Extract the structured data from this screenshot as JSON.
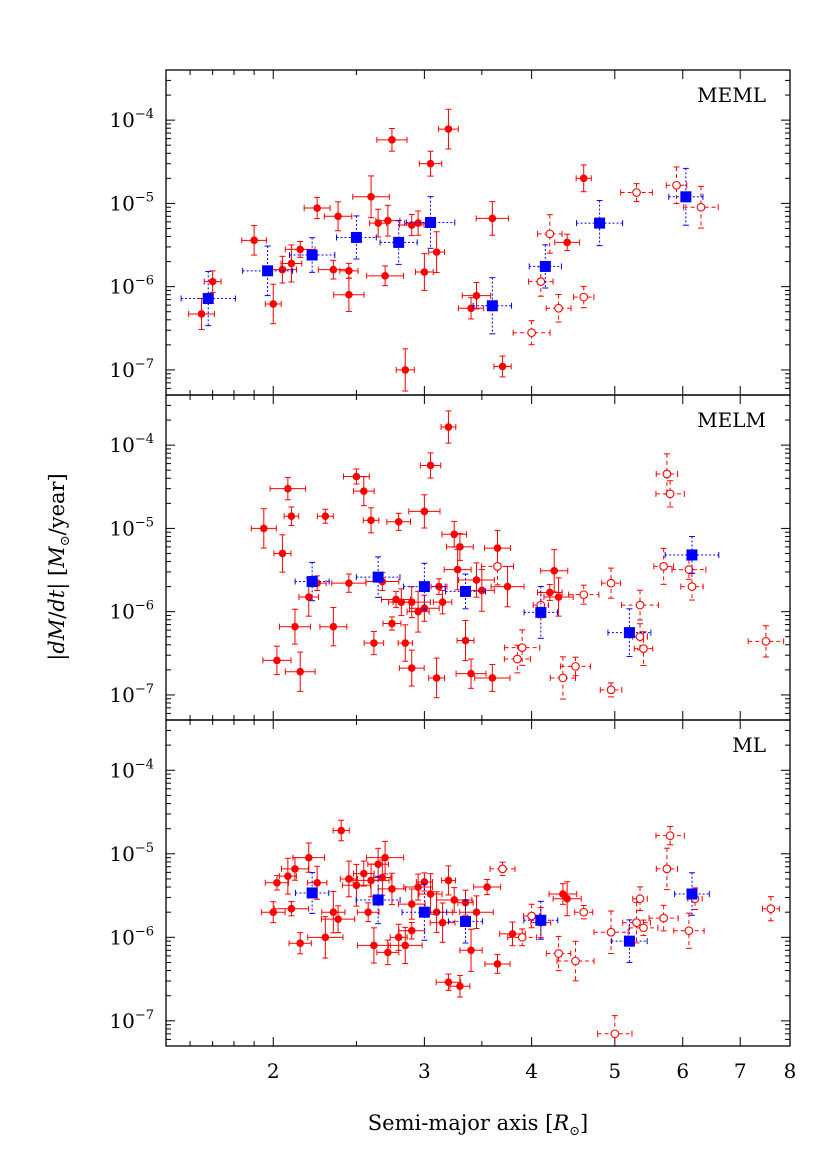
{
  "chart_data": {
    "type": "scatter",
    "xlabel": "Semi-major axis [R⊙]",
    "xlabel_main": "Semi-major axis [",
    "xlabel_unit": "R",
    "xlabel_sub": "⊙",
    "xlabel_close": "]",
    "ylabel": "|dM/dt| [M⊙/year]",
    "ylabel_parts": {
      "lead": "|",
      "dM": "dM",
      "slash": "/",
      "dt": "dt",
      "mid": "| [",
      "M": "M",
      "sun": "⊙",
      "tail": "/year]"
    },
    "x_scale": "log",
    "y_scale": "log",
    "xlim": [
      1.5,
      8
    ],
    "ylim": [
      5e-08,
      0.0004
    ],
    "x_ticks": [
      {
        "value": 2,
        "label": "2"
      },
      {
        "value": 3,
        "label": "3"
      },
      {
        "value": 4,
        "label": "4"
      },
      {
        "value": 5,
        "label": "5"
      },
      {
        "value": 6,
        "label": "6"
      },
      {
        "value": 7,
        "label": "7"
      },
      {
        "value": 8,
        "label": "8"
      }
    ],
    "y_ticks": [
      {
        "value": 1e-07,
        "base": "10",
        "exp": "−7"
      },
      {
        "value": 1e-06,
        "base": "10",
        "exp": "−6"
      },
      {
        "value": 1e-05,
        "base": "10",
        "exp": "−5"
      },
      {
        "value": 0.0001,
        "base": "10",
        "exp": "−4"
      }
    ],
    "colors": {
      "individual": "#ff0000",
      "binned": "#0000ff"
    },
    "panels": [
      {
        "label": "MEML",
        "series": [
          {
            "kind": "filled",
            "points": [
              [
                1.65,
                4.7e-07
              ],
              [
                1.7,
                1.15e-06
              ],
              [
                1.9,
                3.6e-06
              ],
              [
                2.0,
                6.2e-07
              ],
              [
                2.05,
                1.6e-06
              ],
              [
                2.1,
                1.9e-06
              ],
              [
                2.15,
                2.8e-06
              ],
              [
                2.25,
                8.8e-06
              ],
              [
                2.35,
                1.6e-06
              ],
              [
                2.38,
                7e-06
              ],
              [
                2.45,
                1.55e-06
              ],
              [
                2.6,
                1.2e-05
              ],
              [
                2.65,
                5.8e-06
              ],
              [
                2.7,
                1.35e-06
              ],
              [
                2.72,
                6.2e-06
              ],
              [
                2.75,
                5.8e-05
              ],
              [
                2.85,
                1e-07
              ],
              [
                2.9,
                5.5e-06
              ],
              [
                2.95,
                5.8e-06
              ],
              [
                3.0,
                1.5e-06
              ],
              [
                3.05,
                3e-05
              ],
              [
                3.1,
                2.6e-06
              ],
              [
                3.2,
                7.8e-05
              ],
              [
                3.4,
                5.5e-07
              ],
              [
                3.45,
                7.8e-07
              ],
              [
                3.6,
                6.6e-06
              ],
              [
                3.7,
                1.1e-07
              ],
              [
                4.4,
                3.4e-06
              ],
              [
                4.6,
                2e-05
              ],
              [
                2.45,
                8e-07
              ]
            ]
          },
          {
            "kind": "open",
            "points": [
              [
                4.0,
                2.8e-07
              ],
              [
                4.1,
                1.15e-06
              ],
              [
                4.2,
                4.3e-06
              ],
              [
                4.3,
                5.5e-07
              ],
              [
                4.6,
                7.5e-07
              ],
              [
                5.3,
                1.35e-05
              ],
              [
                5.9,
                1.65e-05
              ],
              [
                6.3,
                9e-06
              ]
            ]
          },
          {
            "kind": "binned",
            "points": [
              [
                1.68,
                7.2e-07
              ],
              [
                1.97,
                1.55e-06
              ],
              [
                2.22,
                2.4e-06
              ],
              [
                2.5,
                3.9e-06
              ],
              [
                2.8,
                3.4e-06
              ],
              [
                3.05,
                5.9e-06
              ],
              [
                3.6,
                5.9e-07
              ],
              [
                4.15,
                1.75e-06
              ],
              [
                4.8,
                5.8e-06
              ],
              [
                6.05,
                1.2e-05
              ]
            ]
          }
        ]
      },
      {
        "label": "MELM",
        "series": [
          {
            "kind": "filled",
            "points": [
              [
                1.95,
                1e-05
              ],
              [
                2.02,
                2.6e-07
              ],
              [
                2.05,
                5e-06
              ],
              [
                2.08,
                3e-05
              ],
              [
                2.1,
                1.4e-05
              ],
              [
                2.12,
                6.6e-07
              ],
              [
                2.15,
                1.9e-07
              ],
              [
                2.2,
                1.5e-06
              ],
              [
                2.25,
                2.2e-06
              ],
              [
                2.3,
                1.4e-05
              ],
              [
                2.35,
                6.6e-07
              ],
              [
                2.45,
                2.2e-06
              ],
              [
                2.5,
                4.2e-05
              ],
              [
                2.55,
                2.8e-05
              ],
              [
                2.6,
                1.25e-05
              ],
              [
                2.62,
                4.2e-07
              ],
              [
                2.68,
                2.3e-06
              ],
              [
                2.75,
                7.2e-07
              ],
              [
                2.78,
                1.4e-06
              ],
              [
                2.8,
                1.2e-05
              ],
              [
                2.82,
                1.3e-06
              ],
              [
                2.85,
                4.2e-07
              ],
              [
                2.9,
                2.1e-07
              ],
              [
                2.95,
                1e-06
              ],
              [
                3.0,
                1.6e-05
              ],
              [
                3.05,
                5.7e-05
              ],
              [
                3.1,
                1.6e-07
              ],
              [
                3.12,
                2e-06
              ],
              [
                3.15,
                1.3e-06
              ],
              [
                3.2,
                0.000165
              ],
              [
                3.25,
                8.5e-06
              ],
              [
                3.28,
                3.2e-06
              ],
              [
                3.3,
                6e-06
              ],
              [
                3.35,
                4.5e-07
              ],
              [
                3.4,
                1.8e-07
              ],
              [
                3.45,
                2.4e-06
              ],
              [
                3.5,
                1.8e-06
              ],
              [
                3.6,
                1.6e-07
              ],
              [
                3.65,
                5.8e-06
              ],
              [
                3.75,
                2e-06
              ],
              [
                4.25,
                3.1e-06
              ],
              [
                4.3,
                1.5e-06
              ],
              [
                4.2,
                1.7e-06
              ],
              [
                2.9,
                1.3e-06
              ],
              [
                3.0,
                1.1e-06
              ]
            ]
          },
          {
            "kind": "open",
            "points": [
              [
                3.65,
                3.5e-06
              ],
              [
                3.85,
                2.7e-07
              ],
              [
                3.9,
                3.7e-07
              ],
              [
                4.1,
                1.2e-06
              ],
              [
                4.35,
                1.6e-07
              ],
              [
                4.5,
                2.2e-07
              ],
              [
                4.6,
                1.6e-06
              ],
              [
                4.95,
                2.2e-06
              ],
              [
                4.95,
                1.15e-07
              ],
              [
                5.35,
                1.2e-06
              ],
              [
                5.35,
                5e-07
              ],
              [
                5.4,
                3.6e-07
              ],
              [
                5.7,
                3.5e-06
              ],
              [
                5.75,
                4.5e-05
              ],
              [
                5.8,
                2.6e-05
              ],
              [
                6.1,
                3.2e-06
              ],
              [
                6.15,
                2e-06
              ],
              [
                7.5,
                4.4e-07
              ]
            ]
          },
          {
            "kind": "binned",
            "points": [
              [
                2.22,
                2.3e-06
              ],
              [
                2.65,
                2.6e-06
              ],
              [
                3.0,
                2e-06
              ],
              [
                3.35,
                1.75e-06
              ],
              [
                4.1,
                9.8e-07
              ],
              [
                5.2,
                5.6e-07
              ],
              [
                6.15,
                4.8e-06
              ]
            ]
          }
        ]
      },
      {
        "label": "ML",
        "series": [
          {
            "kind": "filled",
            "points": [
              [
                2.0,
                2e-06
              ],
              [
                2.02,
                4.5e-06
              ],
              [
                2.08,
                5.4e-06
              ],
              [
                2.1,
                2.2e-06
              ],
              [
                2.12,
                6.6e-06
              ],
              [
                2.15,
                8.5e-07
              ],
              [
                2.2,
                9e-06
              ],
              [
                2.25,
                4.5e-06
              ],
              [
                2.3,
                1e-06
              ],
              [
                2.35,
                2e-06
              ],
              [
                2.38,
                1.65e-06
              ],
              [
                2.4,
                1.9e-05
              ],
              [
                2.45,
                5e-06
              ],
              [
                2.5,
                4.2e-06
              ],
              [
                2.55,
                5.8e-06
              ],
              [
                2.58,
                2e-06
              ],
              [
                2.6,
                4.8e-06
              ],
              [
                2.62,
                8e-07
              ],
              [
                2.65,
                7.5e-06
              ],
              [
                2.68,
                5.2e-06
              ],
              [
                2.7,
                9e-06
              ],
              [
                2.72,
                6.6e-07
              ],
              [
                2.75,
                3.8e-06
              ],
              [
                2.8,
                1e-06
              ],
              [
                2.85,
                8e-07
              ],
              [
                2.9,
                2.5e-06
              ],
              [
                2.95,
                4e-06
              ],
              [
                3.0,
                4.6e-06
              ],
              [
                3.05,
                3.3e-06
              ],
              [
                3.1,
                2e-06
              ],
              [
                3.15,
                1.5e-06
              ],
              [
                3.2,
                2.9e-07
              ],
              [
                3.25,
                2.8e-06
              ],
              [
                3.3,
                2.6e-07
              ],
              [
                3.35,
                2.6e-06
              ],
              [
                3.4,
                7e-07
              ],
              [
                3.45,
                2e-06
              ],
              [
                3.55,
                4e-06
              ],
              [
                3.65,
                4.8e-07
              ],
              [
                3.8,
                1.1e-06
              ],
              [
                4.1,
                1.5e-06
              ],
              [
                4.35,
                3.3e-06
              ],
              [
                4.4,
                2.9e-06
              ],
              [
                2.9,
                1.2e-06
              ],
              [
                3.2,
                4.8e-06
              ]
            ]
          },
          {
            "kind": "open",
            "points": [
              [
                3.7,
                6.6e-06
              ],
              [
                3.9,
                1e-06
              ],
              [
                4.0,
                1.8e-06
              ],
              [
                4.3,
                6.4e-07
              ],
              [
                4.5,
                5.2e-07
              ],
              [
                4.6,
                2e-06
              ],
              [
                4.95,
                1.15e-06
              ],
              [
                5.0,
                7e-08
              ],
              [
                5.3,
                1.5e-06
              ],
              [
                5.35,
                2.9e-06
              ],
              [
                5.4,
                1.3e-06
              ],
              [
                5.7,
                1.7e-06
              ],
              [
                5.75,
                6.6e-06
              ],
              [
                5.8,
                1.65e-05
              ],
              [
                6.1,
                1.2e-06
              ],
              [
                6.2,
                2.9e-06
              ],
              [
                7.6,
                2.2e-06
              ]
            ]
          },
          {
            "kind": "binned",
            "points": [
              [
                2.22,
                3.4e-06
              ],
              [
                2.65,
                2.8e-06
              ],
              [
                3.0,
                2e-06
              ],
              [
                3.35,
                1.55e-06
              ],
              [
                4.1,
                1.6e-06
              ],
              [
                5.2,
                9e-07
              ],
              [
                6.15,
                3.3e-06
              ]
            ]
          }
        ]
      }
    ]
  }
}
